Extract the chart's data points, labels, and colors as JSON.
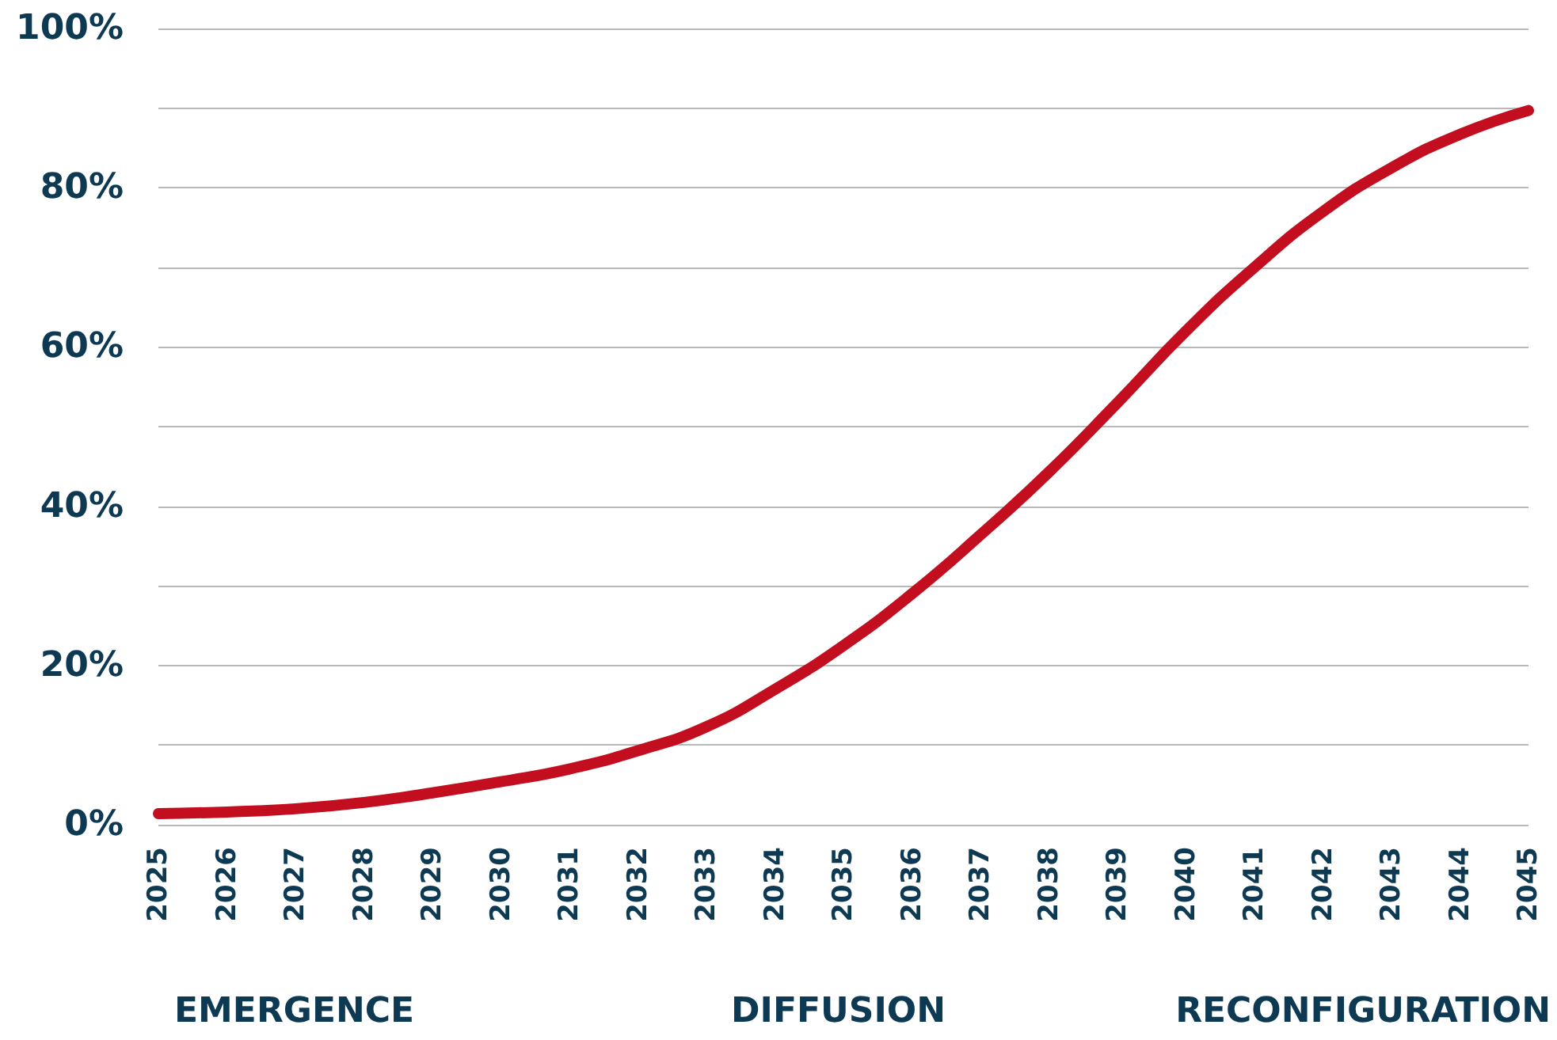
{
  "chart_data": {
    "type": "line",
    "categories": [
      "2025",
      "2026",
      "2027",
      "2028",
      "2029",
      "2030",
      "2031",
      "2032",
      "2033",
      "2034",
      "2035",
      "2036",
      "2037",
      "2038",
      "2039",
      "2040",
      "2041",
      "2042",
      "2043",
      "2044",
      "2045"
    ],
    "series": [
      {
        "color": "#c20e1f",
        "values": [
          1.4,
          1.6,
          2,
          2.8,
          4,
          5.4,
          7,
          9.3,
          12.3,
          17,
          22.5,
          29,
          36.4,
          44.3,
          53,
          62,
          70,
          77,
          82.5,
          86.7,
          89.7
        ]
      }
    ],
    "ylim": [
      0,
      100
    ],
    "yticks": [
      {
        "value": 0,
        "label": "0%"
      },
      {
        "value": 10,
        "label": null
      },
      {
        "value": 20,
        "label": "20%"
      },
      {
        "value": 30,
        "label": null
      },
      {
        "value": 40,
        "label": "40%"
      },
      {
        "value": 50,
        "label": null
      },
      {
        "value": 60,
        "label": "60%"
      },
      {
        "value": 70,
        "label": null
      },
      {
        "value": 80,
        "label": "80%"
      },
      {
        "value": 90,
        "label": null
      },
      {
        "value": 100,
        "label": "100%"
      }
    ],
    "grid": "y",
    "marker": "none",
    "line_style": "solid",
    "annotations": [
      "EMERGENCE",
      "DIFFUSION",
      "RECONFIGURATION"
    ]
  }
}
